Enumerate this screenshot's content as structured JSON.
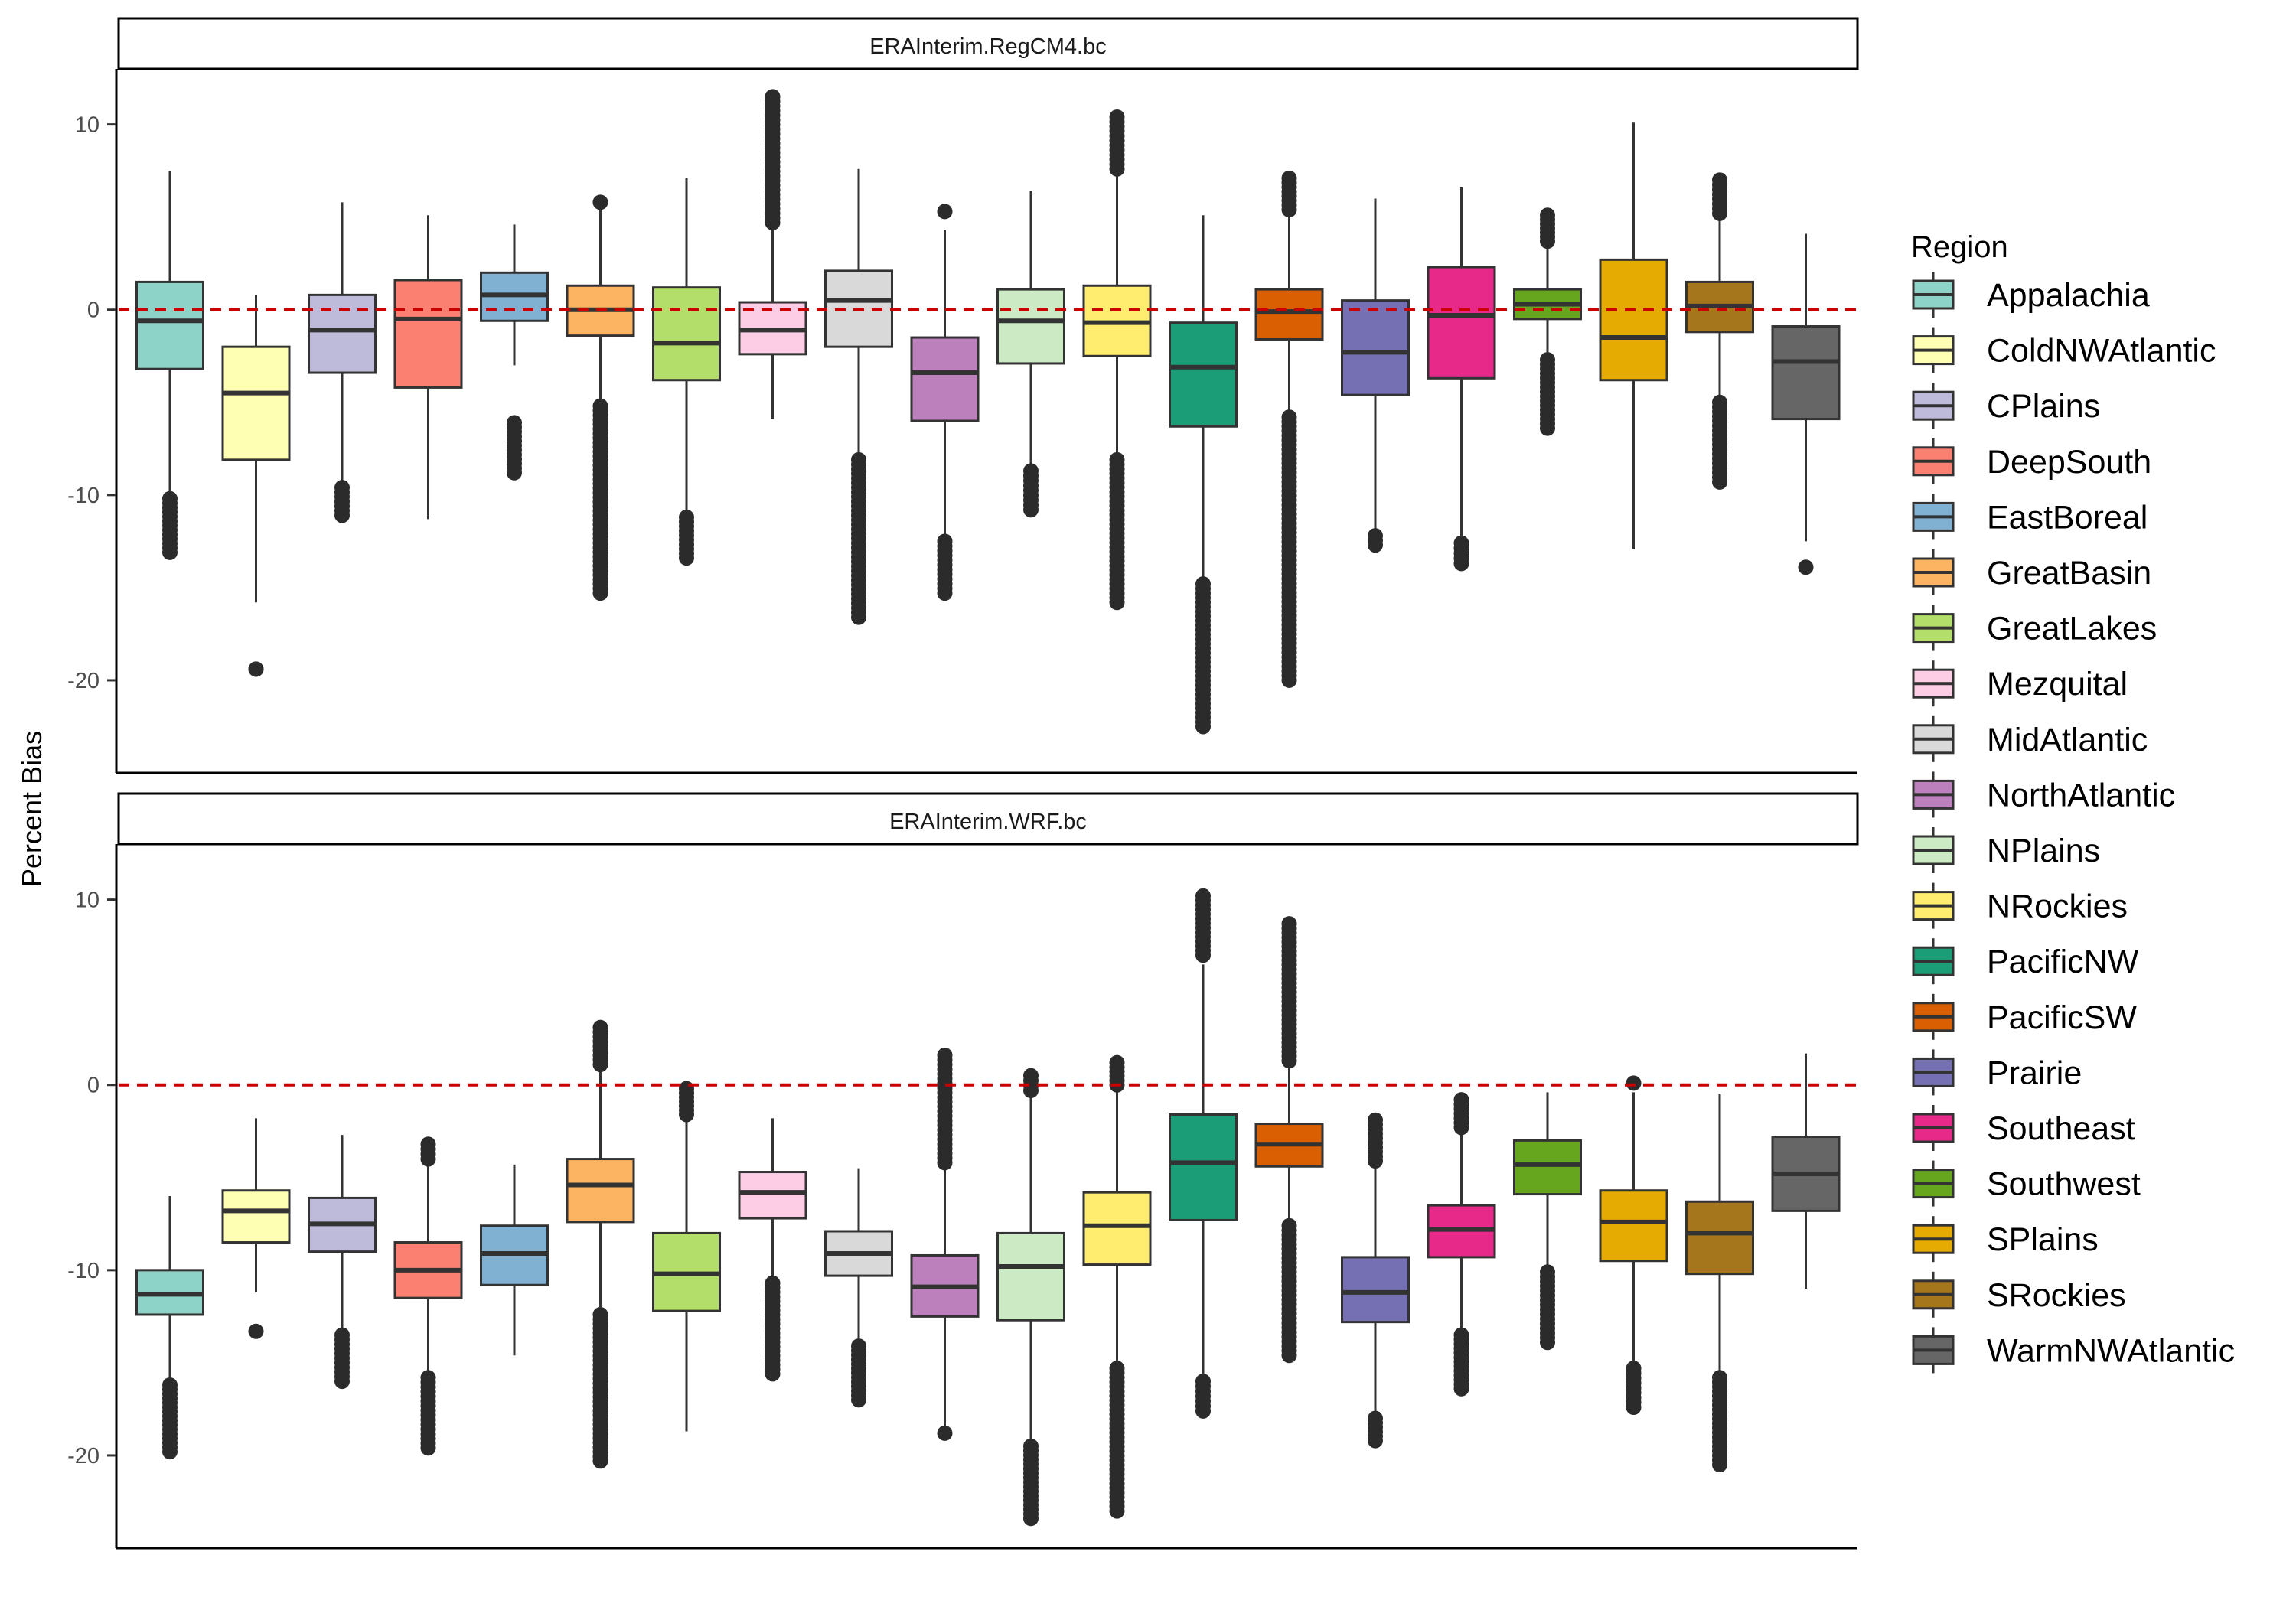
{
  "chart_data": {
    "type": "boxplot",
    "ylabel": "Percent Bias",
    "xlabel": "",
    "ylim": [
      -25,
      13
    ],
    "yticks": [
      10,
      0,
      -10,
      -20
    ],
    "reference_line": {
      "y": 0,
      "color": "#cc0000",
      "style": "dashed"
    },
    "legend": {
      "title": "Region",
      "position": "right"
    },
    "regions": [
      {
        "name": "Appalachia",
        "color": "#8DD3C7"
      },
      {
        "name": "ColdNWAtlantic",
        "color": "#FFFFB3"
      },
      {
        "name": "CPlains",
        "color": "#BEBADA"
      },
      {
        "name": "DeepSouth",
        "color": "#FB8072"
      },
      {
        "name": "EastBoreal",
        "color": "#80B1D3"
      },
      {
        "name": "GreatBasin",
        "color": "#FDB462"
      },
      {
        "name": "GreatLakes",
        "color": "#B3DE69"
      },
      {
        "name": "Mezquital",
        "color": "#FCCDE5"
      },
      {
        "name": "MidAtlantic",
        "color": "#D9D9D9"
      },
      {
        "name": "NorthAtlantic",
        "color": "#BC80BD"
      },
      {
        "name": "NPlains",
        "color": "#CCEBC5"
      },
      {
        "name": "NRockies",
        "color": "#FFED6F"
      },
      {
        "name": "PacificNW",
        "color": "#1B9E77"
      },
      {
        "name": "PacificSW",
        "color": "#D95F02"
      },
      {
        "name": "Prairie",
        "color": "#7570B3"
      },
      {
        "name": "Southeast",
        "color": "#E7298A"
      },
      {
        "name": "Southwest",
        "color": "#66A61E"
      },
      {
        "name": "SPlains",
        "color": "#E6AB02"
      },
      {
        "name": "SRockies",
        "color": "#A6761D"
      },
      {
        "name": "WarmNWAtlantic",
        "color": "#666666"
      }
    ],
    "panels": [
      {
        "title": "ERAInterim.RegCM4.bc",
        "boxes": [
          {
            "region": "Appalachia",
            "whislo": -10,
            "q1": -3.2,
            "med": -0.6,
            "q3": 1.5,
            "whishi": 7.5,
            "out_lo": [
              -10.2,
              -13.1
            ],
            "out_hi": []
          },
          {
            "region": "ColdNWAtlantic",
            "whislo": -15.8,
            "q1": -8.1,
            "med": -4.5,
            "q3": -2.0,
            "whishi": 0.8,
            "out_lo": [
              -19.4,
              -19.4
            ],
            "out_hi": []
          },
          {
            "region": "CPlains",
            "whislo": -9.5,
            "q1": -3.4,
            "med": -1.1,
            "q3": 0.8,
            "whishi": 5.8,
            "out_lo": [
              -9.6,
              -11.1
            ],
            "out_hi": []
          },
          {
            "region": "DeepSouth",
            "whislo": -11.3,
            "q1": -4.2,
            "med": -0.5,
            "q3": 1.6,
            "whishi": 5.1,
            "out_lo": [],
            "out_hi": []
          },
          {
            "region": "EastBoreal",
            "whislo": -3.0,
            "q1": -0.6,
            "med": 0.8,
            "q3": 2.0,
            "whishi": 4.6,
            "out_lo": [
              -6.1,
              -8.8
            ],
            "out_hi": []
          },
          {
            "region": "GreatBasin",
            "whislo": -5.0,
            "q1": -1.4,
            "med": 0.0,
            "q3": 1.3,
            "whishi": 5.5,
            "out_lo": [
              -5.2,
              -13.1,
              -15.3
            ],
            "out_hi": [
              5.8
            ]
          },
          {
            "region": "GreatLakes",
            "whislo": -11.0,
            "q1": -3.8,
            "med": -1.8,
            "q3": 1.2,
            "whishi": 7.1,
            "out_lo": [
              -11.2,
              -13.4
            ],
            "out_hi": []
          },
          {
            "region": "Mezquital",
            "whislo": -5.9,
            "q1": -2.4,
            "med": -1.1,
            "q3": 0.4,
            "whishi": 4.5,
            "out_lo": [],
            "out_hi": [
              4.7,
              11.5
            ]
          },
          {
            "region": "MidAtlantic",
            "whislo": -7.8,
            "q1": -2.0,
            "med": 0.5,
            "q3": 2.1,
            "whishi": 7.6,
            "out_lo": [
              -8.1,
              -16.6
            ],
            "out_hi": []
          },
          {
            "region": "NorthAtlantic",
            "whislo": -12.4,
            "q1": -6.0,
            "med": -3.4,
            "q3": -1.5,
            "whishi": 4.3,
            "out_lo": [
              -12.5,
              -15.3
            ],
            "out_hi": [
              5.3
            ]
          },
          {
            "region": "NPlains",
            "whislo": -8.6,
            "q1": -2.9,
            "med": -0.6,
            "q3": 1.1,
            "whishi": 6.4,
            "out_lo": [
              -8.7,
              -10.8
            ],
            "out_hi": []
          },
          {
            "region": "NRockies",
            "whislo": -7.8,
            "q1": -2.5,
            "med": -0.7,
            "q3": 1.3,
            "whishi": 7.4,
            "out_lo": [
              -8.1,
              -15.8
            ],
            "out_hi": [
              7.6,
              10.4
            ]
          },
          {
            "region": "PacificNW",
            "whislo": -14.5,
            "q1": -6.3,
            "med": -3.1,
            "q3": -0.7,
            "whishi": 5.1,
            "out_lo": [
              -14.8,
              -22.5
            ],
            "out_hi": []
          },
          {
            "region": "PacificSW",
            "whislo": -5.5,
            "q1": -1.6,
            "med": -0.1,
            "q3": 1.1,
            "whishi": 5.2,
            "out_lo": [
              -5.8,
              -20.0
            ],
            "out_hi": [
              5.4,
              7.1
            ]
          },
          {
            "region": "Prairie",
            "whislo": -12.0,
            "q1": -4.6,
            "med": -2.3,
            "q3": 0.5,
            "whishi": 6.0,
            "out_lo": [
              -12.2,
              -12.7
            ],
            "out_hi": []
          },
          {
            "region": "Southeast",
            "whislo": -12.3,
            "q1": -3.7,
            "med": -0.3,
            "q3": 2.3,
            "whishi": 6.6,
            "out_lo": [
              -12.6,
              -13.7
            ],
            "out_hi": []
          },
          {
            "region": "Southwest",
            "whislo": -2.5,
            "q1": -0.5,
            "med": 0.3,
            "q3": 1.1,
            "whishi": 3.5,
            "out_lo": [
              -2.7,
              -6.4
            ],
            "out_hi": [
              3.7,
              5.1
            ]
          },
          {
            "region": "SPlains",
            "whislo": -12.9,
            "q1": -3.8,
            "med": -1.5,
            "q3": 2.7,
            "whishi": 10.1,
            "out_lo": [],
            "out_hi": []
          },
          {
            "region": "SRockies",
            "whislo": -4.8,
            "q1": -1.2,
            "med": 0.2,
            "q3": 1.5,
            "whishi": 4.9,
            "out_lo": [
              -5.0,
              -9.3
            ],
            "out_hi": [
              5.2,
              7.0
            ]
          },
          {
            "region": "WarmNWAtlantic",
            "whislo": -12.5,
            "q1": -5.9,
            "med": -2.8,
            "q3": -0.9,
            "whishi": 4.1,
            "out_lo": [
              -13.9
            ],
            "out_hi": []
          }
        ]
      },
      {
        "title": "ERAInterim.WRF.bc",
        "boxes": [
          {
            "region": "Appalachia",
            "whislo": -16.0,
            "q1": -12.4,
            "med": -11.3,
            "q3": -10.0,
            "whishi": -6.0,
            "out_lo": [
              -16.2,
              -19.8
            ],
            "out_hi": []
          },
          {
            "region": "ColdNWAtlantic",
            "whislo": -11.2,
            "q1": -8.5,
            "med": -6.8,
            "q3": -5.7,
            "whishi": -1.8,
            "out_lo": [
              -13.3
            ],
            "out_hi": []
          },
          {
            "region": "CPlains",
            "whislo": -13.2,
            "q1": -9.0,
            "med": -7.5,
            "q3": -6.1,
            "whishi": -2.7,
            "out_lo": [
              -13.5,
              -16.0
            ],
            "out_hi": []
          },
          {
            "region": "DeepSouth",
            "whislo": -15.5,
            "q1": -11.5,
            "med": -10.0,
            "q3": -8.5,
            "whishi": -4.2,
            "out_lo": [
              -15.8,
              -19.6
            ],
            "out_hi": [
              -4.0,
              -3.2
            ]
          },
          {
            "region": "EastBoreal",
            "whislo": -14.6,
            "q1": -10.8,
            "med": -9.1,
            "q3": -7.6,
            "whishi": -4.3,
            "out_lo": [],
            "out_hi": []
          },
          {
            "region": "GreatBasin",
            "whislo": -12.0,
            "q1": -7.4,
            "med": -5.4,
            "q3": -4.0,
            "whishi": 0.9,
            "out_lo": [
              -12.4,
              -20.3
            ],
            "out_hi": [
              1.1,
              3.1
            ]
          },
          {
            "region": "GreatLakes",
            "whislo": -18.7,
            "q1": -12.2,
            "med": -10.2,
            "q3": -8.0,
            "whishi": -1.8,
            "out_lo": [],
            "out_hi": [
              -1.6,
              -0.2
            ]
          },
          {
            "region": "Mezquital",
            "whislo": -10.4,
            "q1": -7.2,
            "med": -5.8,
            "q3": -4.7,
            "whishi": -1.8,
            "out_lo": [
              -10.7,
              -15.6
            ],
            "out_hi": []
          },
          {
            "region": "MidAtlantic",
            "whislo": -13.8,
            "q1": -10.3,
            "med": -9.1,
            "q3": -7.9,
            "whishi": -4.5,
            "out_lo": [
              -14.1,
              -17.0
            ],
            "out_hi": []
          },
          {
            "region": "NorthAtlantic",
            "whislo": -18.8,
            "q1": -12.5,
            "med": -10.9,
            "q3": -9.2,
            "whishi": -4.5,
            "out_lo": [
              -18.8
            ],
            "out_hi": [
              -4.2,
              1.6
            ]
          },
          {
            "region": "NPlains",
            "whislo": -19.3,
            "q1": -12.7,
            "med": -9.8,
            "q3": -8.0,
            "whishi": -0.6,
            "out_lo": [
              -19.5,
              -23.4
            ],
            "out_hi": [
              -0.3,
              0.5
            ]
          },
          {
            "region": "NRockies",
            "whislo": -15.0,
            "q1": -9.7,
            "med": -7.6,
            "q3": -5.8,
            "whishi": -0.3,
            "out_lo": [
              -15.3,
              -23.0
            ],
            "out_hi": [
              0.0,
              1.2
            ]
          },
          {
            "region": "PacificNW",
            "whislo": -15.6,
            "q1": -7.3,
            "med": -4.2,
            "q3": -1.6,
            "whishi": 6.5,
            "out_lo": [
              -16.0,
              -17.6
            ],
            "out_hi": [
              7.0,
              10.2
            ]
          },
          {
            "region": "PacificSW",
            "whislo": -7.3,
            "q1": -4.4,
            "med": -3.2,
            "q3": -2.1,
            "whishi": 1.0,
            "out_lo": [
              -7.6,
              -14.6
            ],
            "out_hi": [
              1.3,
              8.7
            ]
          },
          {
            "region": "Prairie",
            "whislo": -17.8,
            "q1": -12.8,
            "med": -11.2,
            "q3": -9.3,
            "whishi": -4.3,
            "out_lo": [
              -18.0,
              -19.2
            ],
            "out_hi": [
              -4.1,
              -1.9
            ]
          },
          {
            "region": "Southeast",
            "whislo": -13.3,
            "q1": -9.3,
            "med": -7.8,
            "q3": -6.5,
            "whishi": -2.5,
            "out_lo": [
              -13.5,
              -16.4
            ],
            "out_hi": [
              -2.3,
              -0.8
            ]
          },
          {
            "region": "Southwest",
            "whislo": -9.9,
            "q1": -5.9,
            "med": -4.3,
            "q3": -3.0,
            "whishi": -0.4,
            "out_lo": [
              -10.1,
              -13.9
            ],
            "out_hi": []
          },
          {
            "region": "SPlains",
            "whislo": -15.0,
            "q1": -9.5,
            "med": -7.4,
            "q3": -5.7,
            "whishi": -0.4,
            "out_lo": [
              -15.3,
              -17.4
            ],
            "out_hi": [
              0.1
            ]
          },
          {
            "region": "SRockies",
            "whislo": -15.5,
            "q1": -10.2,
            "med": -8.0,
            "q3": -6.3,
            "whishi": -0.5,
            "out_lo": [
              -15.8,
              -20.5
            ],
            "out_hi": []
          },
          {
            "region": "WarmNWAtlantic",
            "whislo": -11.0,
            "q1": -6.8,
            "med": -4.8,
            "q3": -2.8,
            "whishi": 1.7,
            "out_lo": [],
            "out_hi": []
          }
        ]
      }
    ]
  }
}
